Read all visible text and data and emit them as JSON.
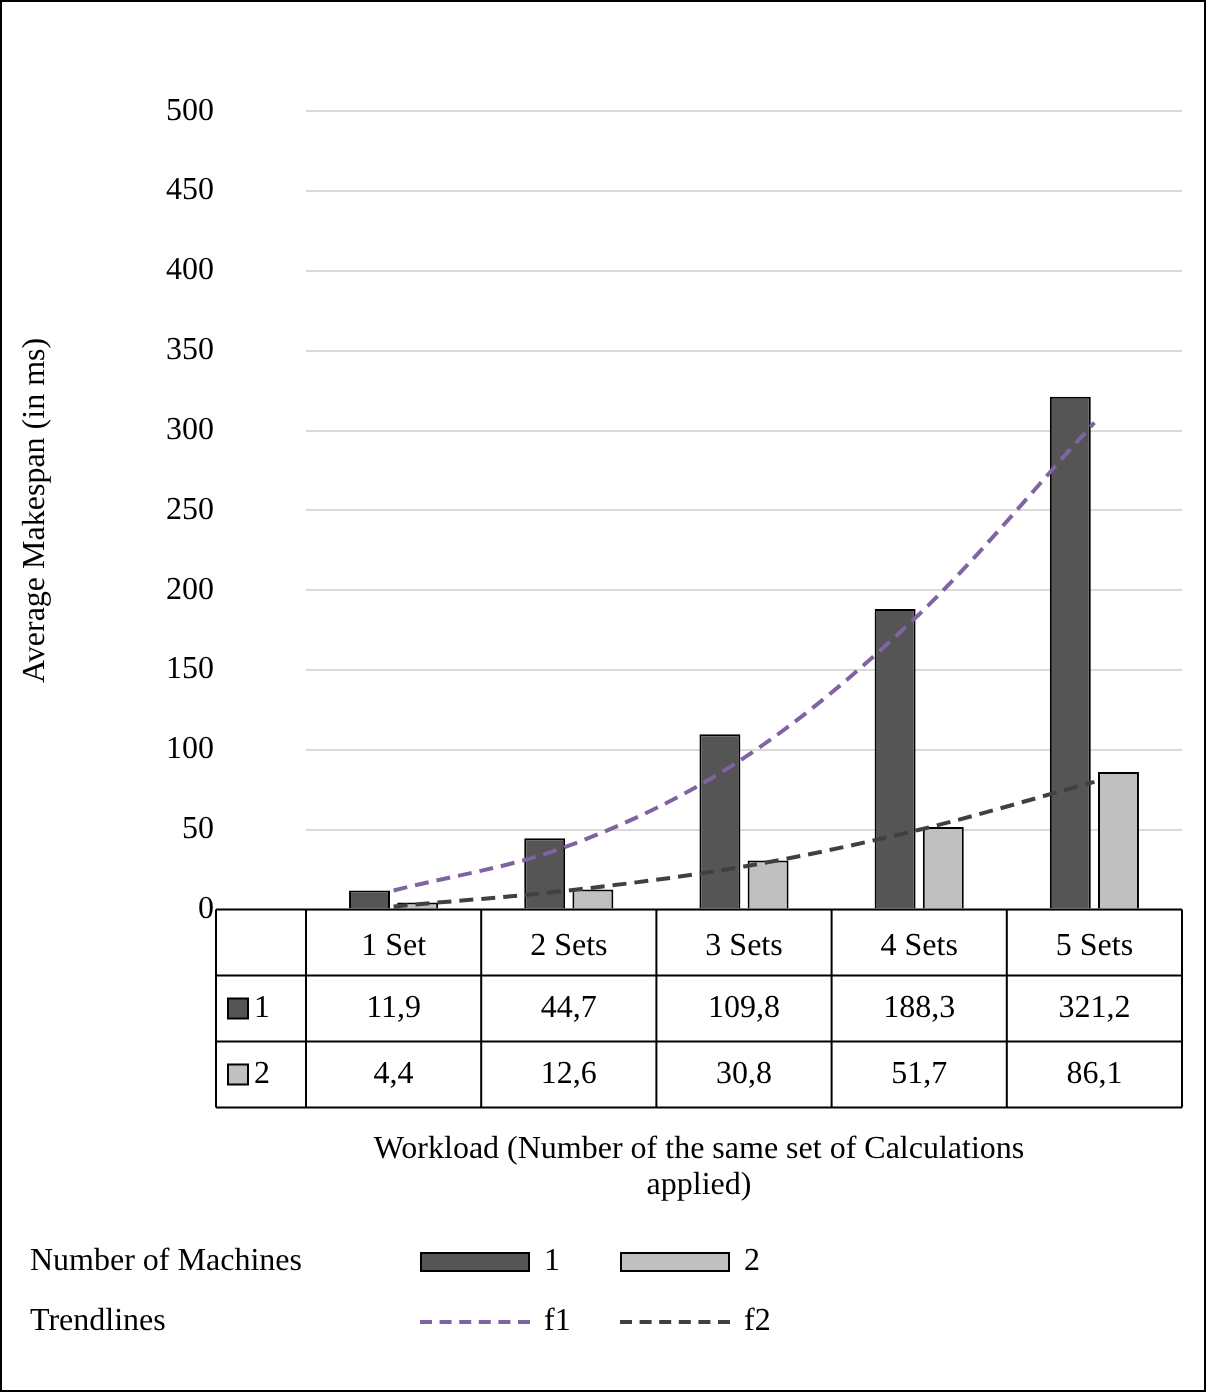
{
  "chart_data": {
    "type": "bar",
    "categories": [
      "1 Set",
      "2 Sets",
      "3 Sets",
      "4 Sets",
      "5 Sets"
    ],
    "series": [
      {
        "name": "1",
        "color": "#555555",
        "values": [
          11.9,
          44.7,
          109.8,
          188.3,
          321.2
        ],
        "value_labels": [
          "11,9",
          "44,7",
          "109,8",
          "188,3",
          "321,2"
        ]
      },
      {
        "name": "2",
        "color": "#c0c0c0",
        "values": [
          4.4,
          12.6,
          30.8,
          51.7,
          86.1
        ],
        "value_labels": [
          "4,4",
          "12,6",
          "30,8",
          "51,7",
          "86,1"
        ]
      },
      {
        "name": "f1",
        "type": "line",
        "color": "#8064a2",
        "line_style": "dashed",
        "x": [
          "1 Set",
          "2 Sets",
          "3 Sets",
          "4 Sets",
          "5 Sets"
        ],
        "values": [
          12,
          40,
          95,
          185,
          305
        ]
      },
      {
        "name": "f2",
        "type": "line",
        "color": "#404040",
        "line_style": "dashed",
        "x": [
          "1 Set",
          "2 Sets",
          "3 Sets",
          "4 Sets",
          "5 Sets"
        ],
        "values": [
          2,
          12,
          27,
          50,
          80
        ]
      }
    ],
    "ylim": [
      0,
      500
    ],
    "yticks": [
      0,
      50,
      100,
      150,
      200,
      250,
      300,
      350,
      400,
      450,
      500
    ],
    "ylabel": "Average Makespan (in ms)",
    "grid": "y",
    "legend": "bottom",
    "legend_title": "Number of Machines",
    "marker": "none",
    "annotations": [
      "Trendlines",
      "Workload (Number of the same set of Calculations applied)"
    ]
  }
}
